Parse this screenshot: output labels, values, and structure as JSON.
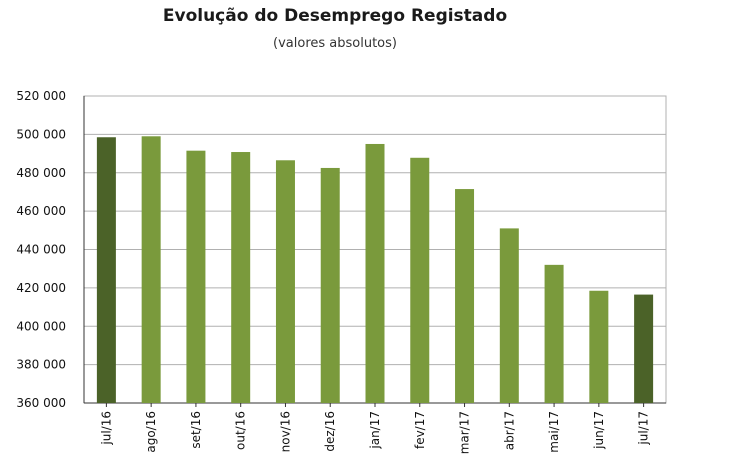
{
  "chart_data": {
    "type": "bar",
    "title": "Evolução do Desemprego Registado",
    "subtitle": "(valores absolutos)",
    "xlabel": "",
    "ylabel": "",
    "categories": [
      "jul/16",
      "ago/16",
      "set/16",
      "out/16",
      "nov/16",
      "dez/16",
      "jan/17",
      "fev/17",
      "mar/17",
      "abr/17",
      "mai/17",
      "jun/17",
      "jul/17"
    ],
    "values": [
      498500,
      499000,
      491500,
      490800,
      486500,
      482500,
      495000,
      487800,
      471500,
      451000,
      432000,
      418500,
      416500
    ],
    "ylim": [
      360000,
      520000
    ],
    "yticks": [
      360000,
      380000,
      400000,
      420000,
      440000,
      460000,
      480000,
      500000,
      520000
    ],
    "ytick_labels": [
      "360 000",
      "380 000",
      "400 000",
      "420 000",
      "440 000",
      "460 000",
      "480 000",
      "500 000",
      "520 000"
    ],
    "grid": true,
    "colors": {
      "bar": "#7a9a3c",
      "highlight": "#4b6228",
      "grid": "#b0b0b0",
      "axis": "#333333"
    },
    "highlight_indices": [
      0,
      12
    ]
  }
}
